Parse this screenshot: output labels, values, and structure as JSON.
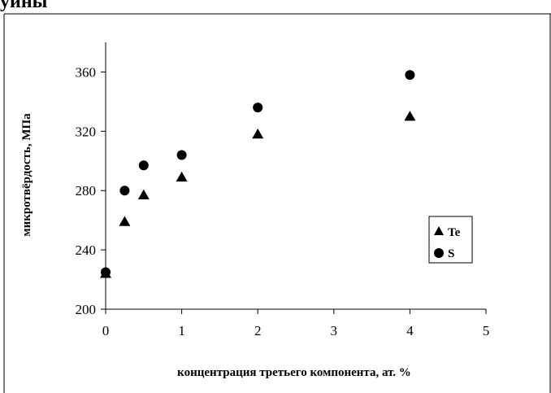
{
  "header_text": "уины",
  "chart_data": {
    "type": "scatter",
    "title": "",
    "xlabel": "концентрация третьего компонента, ат. %",
    "ylabel": "микротвёрдость, МПа",
    "xlim": [
      0,
      5
    ],
    "ylim": [
      200,
      380
    ],
    "x_ticks": [
      0,
      1,
      2,
      3,
      4,
      5
    ],
    "y_ticks": [
      200,
      240,
      280,
      320,
      360
    ],
    "grid": false,
    "legend_position": "right",
    "series": [
      {
        "name": "Te",
        "marker": "triangle",
        "color": "#000000",
        "points": [
          {
            "x": 0,
            "y": 224
          },
          {
            "x": 0.25,
            "y": 259
          },
          {
            "x": 0.5,
            "y": 277
          },
          {
            "x": 1,
            "y": 289
          },
          {
            "x": 2,
            "y": 318
          },
          {
            "x": 4,
            "y": 330
          }
        ]
      },
      {
        "name": "S",
        "marker": "circle",
        "color": "#000000",
        "points": [
          {
            "x": 0,
            "y": 225
          },
          {
            "x": 0.25,
            "y": 280
          },
          {
            "x": 0.5,
            "y": 297
          },
          {
            "x": 1,
            "y": 304
          },
          {
            "x": 2,
            "y": 336
          },
          {
            "x": 4,
            "y": 358
          }
        ]
      }
    ]
  }
}
